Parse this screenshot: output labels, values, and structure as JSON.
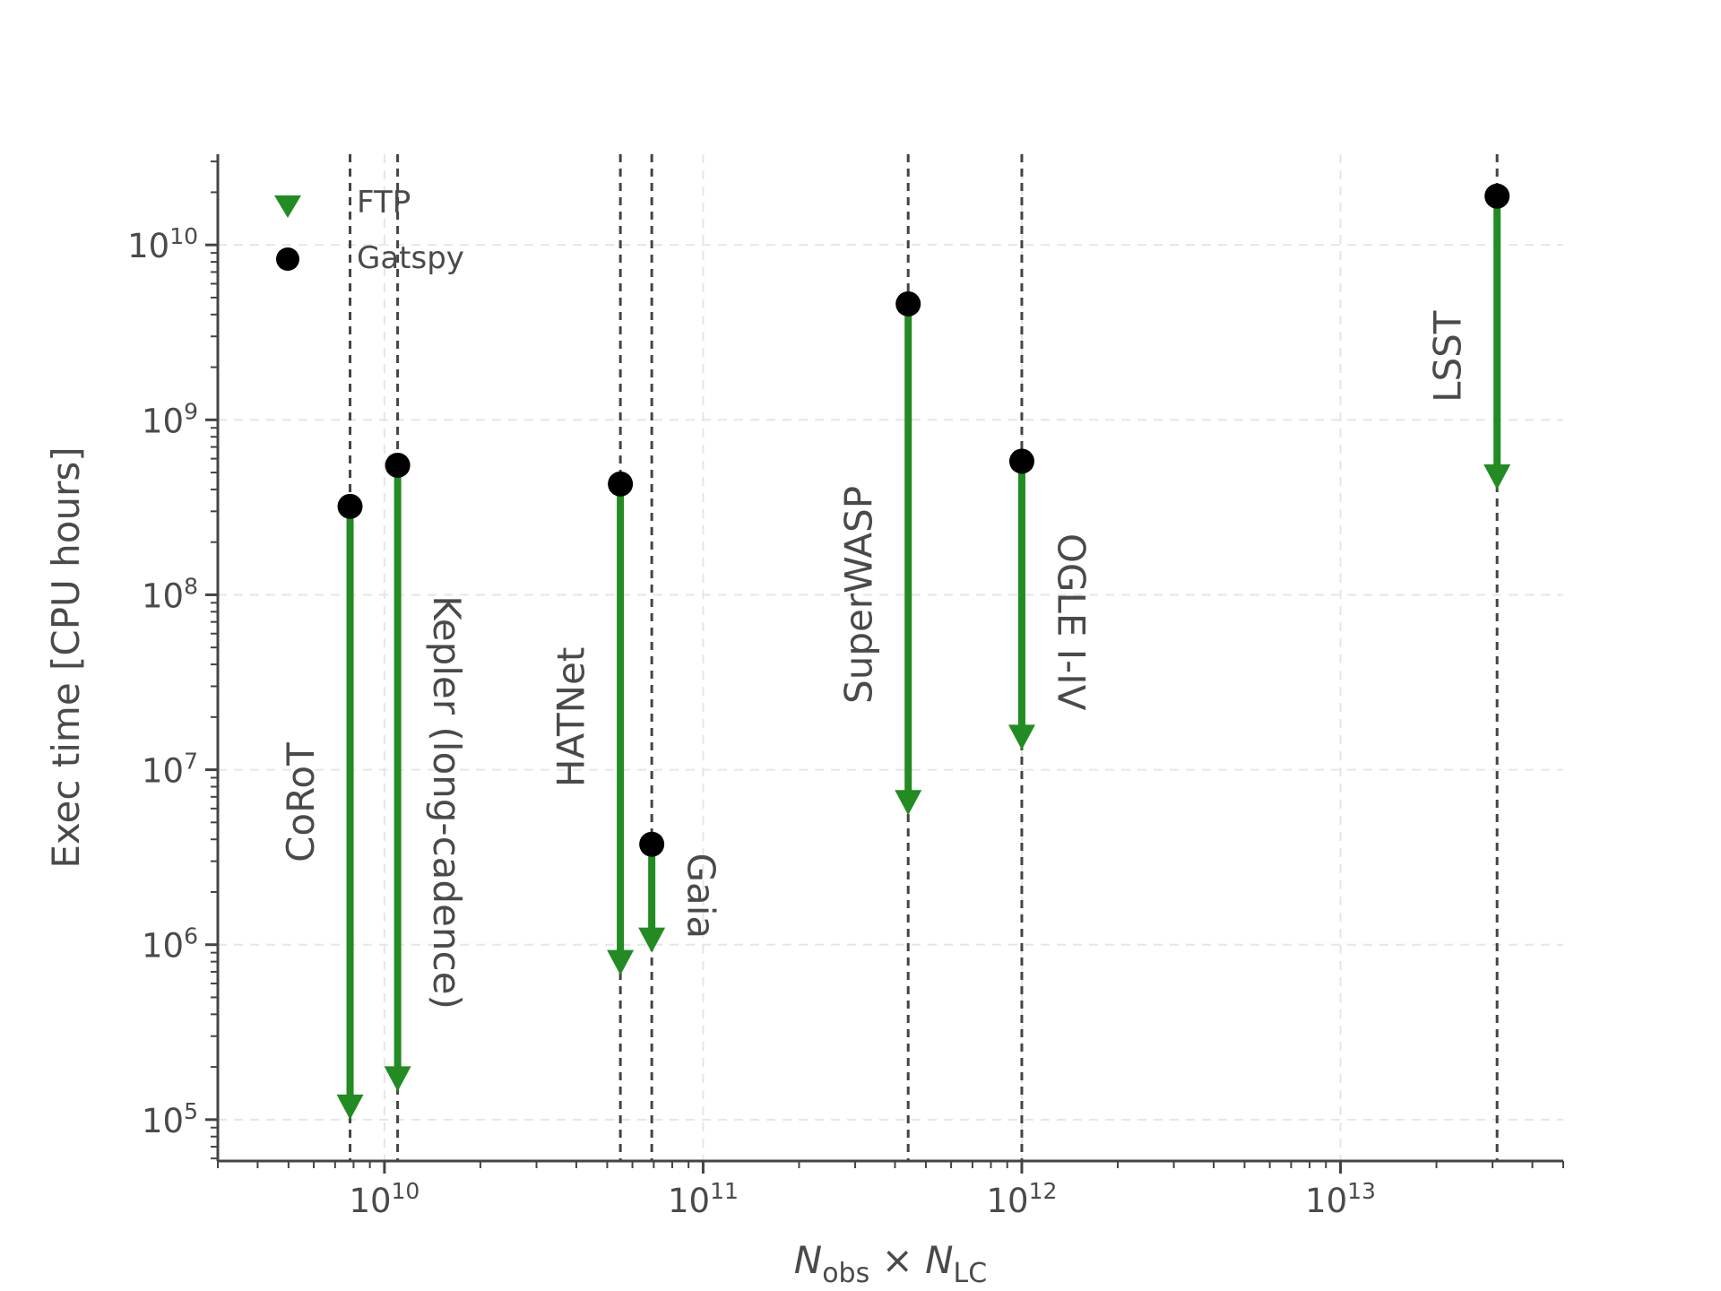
{
  "chart_data": {
    "type": "scatter",
    "x_scale": "log",
    "y_scale": "log",
    "xlim": [
      3000000000.0,
      50000000000000.0
    ],
    "ylim": [
      58000.0,
      33000000000.0
    ],
    "xlabel": {
      "main": "N",
      "sub1": "obs",
      "times": " × ",
      "main2": "N",
      "sub2": "LC"
    },
    "ylabel": "Exec time [CPU hours]",
    "grid": true,
    "legend": {
      "position": "top-left",
      "entries": [
        {
          "label": "FTP",
          "marker": "triangle-down",
          "color": "#228b22"
        },
        {
          "label": "Gatspy",
          "marker": "circle",
          "color": "#000000"
        }
      ]
    },
    "x_ticks": [
      {
        "base": "10",
        "exp": "10",
        "value": 10000000000.0
      },
      {
        "base": "10",
        "exp": "11",
        "value": 100000000000.0
      },
      {
        "base": "10",
        "exp": "12",
        "value": 1000000000000.0
      },
      {
        "base": "10",
        "exp": "13",
        "value": 10000000000000.0
      }
    ],
    "y_ticks": [
      {
        "base": "10",
        "exp": "5",
        "value": 100000.0
      },
      {
        "base": "10",
        "exp": "6",
        "value": 1000000.0
      },
      {
        "base": "10",
        "exp": "7",
        "value": 10000000.0
      },
      {
        "base": "10",
        "exp": "8",
        "value": 100000000.0
      },
      {
        "base": "10",
        "exp": "9",
        "value": 1000000000.0
      },
      {
        "base": "10",
        "exp": "10",
        "value": 10000000000.0
      }
    ],
    "series": [
      {
        "name": "FTP",
        "color": "#228b22"
      },
      {
        "name": "Gatspy",
        "color": "#000000"
      }
    ],
    "surveys": [
      {
        "name": "CoRoT",
        "x": 7800000000.0,
        "gatspy": 320000000.0,
        "ftp": 100000.0,
        "label_rotation": -90,
        "label_x": 7800000000.0,
        "label_y": 6500000.0
      },
      {
        "name": "Kepler (long-cadence)",
        "x": 11000000000.0,
        "gatspy": 550000000.0,
        "ftp": 145000.0,
        "label_rotation": 90,
        "label_x": 11000000000.0,
        "label_y": 6500000.0
      },
      {
        "name": "HATNet",
        "x": 55000000000.0,
        "gatspy": 430000000.0,
        "ftp": 670000.0,
        "label_rotation": -90,
        "label_x": 55000000000.0,
        "label_y": 20000000.0
      },
      {
        "name": "Gaia",
        "x": 69000000000.0,
        "gatspy": 3750000.0,
        "ftp": 900000.0,
        "label_rotation": 90,
        "label_x": 69000000000.0,
        "label_y": 1900000.0
      },
      {
        "name": "SuperWASP",
        "x": 440000000000.0,
        "gatspy": 4600000000.0,
        "ftp": 5500000.0,
        "label_rotation": -90,
        "label_x": 440000000000.0,
        "label_y": 100000000.0
      },
      {
        "name": "OGLE I-IV",
        "x": 1000000000000.0,
        "gatspy": 580000000.0,
        "ftp": 13000000.0,
        "label_rotation": 90,
        "label_x": 1000000000000.0,
        "label_y": 70000000.0
      },
      {
        "name": "LSST",
        "x": 31000000000000.0,
        "gatspy": 19000000000.0,
        "ftp": 400000000.0,
        "label_rotation": -90,
        "label_x": 31000000000000.0,
        "label_y": 2300000000.0
      }
    ]
  }
}
